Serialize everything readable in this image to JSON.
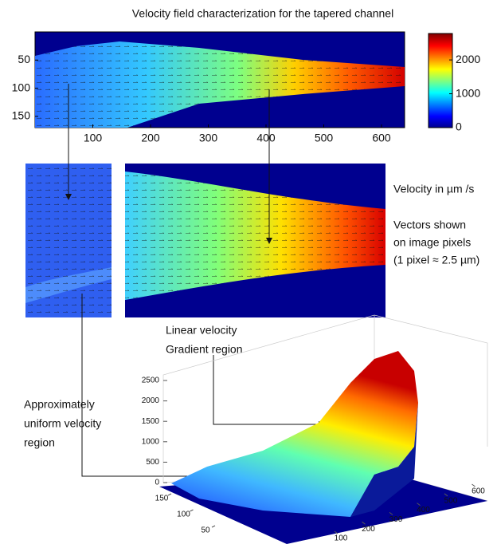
{
  "title": "Velocity field  characterization  for the tapered channel",
  "top_plot": {
    "xticks": [
      100,
      200,
      300,
      400,
      500,
      600
    ],
    "xlim": [
      0,
      640
    ],
    "yticks": [
      50,
      100,
      150
    ],
    "ylim": [
      0,
      170
    ]
  },
  "colorbar": {
    "ticks": [
      0,
      1000,
      2000
    ],
    "lim": [
      0,
      2780
    ]
  },
  "annotations": {
    "units": "Velocity in  µm /s",
    "vectors": [
      "Vectors shown",
      "on image pixels",
      "(1 pixel ≈ 2.5 µm)"
    ],
    "uniform": [
      "Approximately",
      "uniform velocity",
      "region"
    ],
    "gradient": [
      "Linear velocity",
      "Gradient region"
    ]
  },
  "surface_plot": {
    "zticks": [
      0,
      500,
      1000,
      1500,
      2000,
      2500
    ],
    "xticks": [
      100,
      200,
      300,
      400,
      500,
      600
    ],
    "yticks": [
      50,
      100,
      150
    ]
  }
}
